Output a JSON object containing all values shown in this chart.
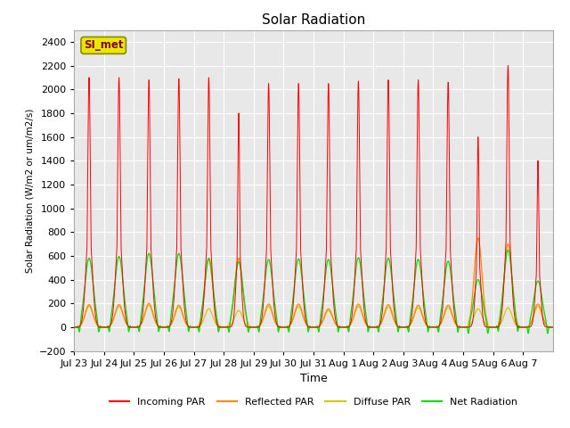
{
  "title": "Solar Radiation",
  "ylabel": "Solar Radiation (W/m2 or um/m2/s)",
  "xlabel": "Time",
  "ylim": [
    -200,
    2500
  ],
  "yticks": [
    -200,
    0,
    200,
    400,
    600,
    800,
    1000,
    1200,
    1400,
    1600,
    1800,
    2000,
    2200,
    2400
  ],
  "fig_bg_color": "#ffffff",
  "plot_bg_color": "#e8e8e8",
  "station_label": "SI_met",
  "station_label_color": "#8b0000",
  "station_box_facecolor": "#e8e800",
  "station_box_edgecolor": "#888800",
  "colors": {
    "incoming": "#ff0000",
    "reflected": "#ff8800",
    "diffuse": "#cccc00",
    "net": "#00dd00"
  },
  "legend_labels": [
    "Incoming PAR",
    "Reflected PAR",
    "Diffuse PAR",
    "Net Radiation"
  ],
  "n_days": 16,
  "day_labels": [
    "Jul 23",
    "Jul 24",
    "Jul 25",
    "Jul 26",
    "Jul 27",
    "Jul 28",
    "Jul 29",
    "Jul 30",
    "Jul 31",
    "Aug 1",
    "Aug 2",
    "Aug 3",
    "Aug 4",
    "Aug 5",
    "Aug 6",
    "Aug 7"
  ],
  "incoming_peaks": [
    2100,
    2100,
    2080,
    2090,
    2100,
    1800,
    2050,
    2050,
    2050,
    2070,
    2080,
    2080,
    2060,
    1600,
    2200,
    1400
  ],
  "incoming_widths": [
    0.13,
    0.13,
    0.13,
    0.13,
    0.13,
    0.1,
    0.13,
    0.13,
    0.13,
    0.13,
    0.13,
    0.13,
    0.13,
    0.1,
    0.13,
    0.1
  ],
  "reflected_peaks": [
    190,
    190,
    200,
    185,
    570,
    580,
    195,
    195,
    155,
    195,
    190,
    185,
    185,
    750,
    700,
    195
  ],
  "diffuse_peaks": [
    175,
    175,
    185,
    170,
    155,
    140,
    175,
    175,
    140,
    175,
    170,
    165,
    165,
    155,
    165,
    175
  ],
  "net_peaks": [
    580,
    595,
    620,
    620,
    580,
    550,
    570,
    575,
    570,
    585,
    580,
    570,
    555,
    400,
    650,
    390
  ],
  "net_trough": -80,
  "net_sigma": 0.14
}
